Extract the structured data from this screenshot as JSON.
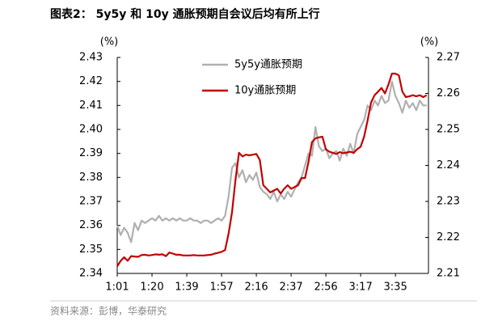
{
  "chart_data": {
    "type": "line",
    "title": "图表2： 5y5y 和 10y 通胀预期自会议后均有所上行",
    "source": "资料来源：彭博，华泰研究",
    "y_unit": "(%)",
    "y2_unit": "(%)",
    "categories": [
      "1:01",
      null,
      null,
      null,
      null,
      null,
      null,
      null,
      null,
      null,
      "1:20",
      null,
      null,
      null,
      null,
      null,
      null,
      null,
      null,
      null,
      "1:39",
      null,
      null,
      null,
      null,
      null,
      null,
      null,
      null,
      null,
      "1:57",
      null,
      null,
      null,
      null,
      null,
      null,
      null,
      null,
      null,
      "2:16",
      null,
      null,
      null,
      null,
      null,
      null,
      null,
      null,
      null,
      "2:37",
      null,
      null,
      null,
      null,
      null,
      null,
      null,
      null,
      null,
      "2:56",
      null,
      null,
      null,
      null,
      null,
      null,
      null,
      null,
      null,
      "3:17",
      null,
      null,
      null,
      null,
      null,
      null,
      null,
      null,
      null,
      "3:35",
      null,
      null,
      null,
      null,
      null,
      null,
      null,
      null,
      null
    ],
    "ylim": [
      2.34,
      2.43
    ],
    "yticks": [
      2.34,
      2.35,
      2.36,
      2.37,
      2.38,
      2.39,
      {
        "value": 2.4,
        "label": "2.40"
      },
      2.41,
      2.42,
      2.43
    ],
    "y2lim": [
      2.21,
      2.27
    ],
    "y2ticks": [
      2.21,
      2.22,
      2.23,
      2.24,
      2.25,
      2.26,
      2.27
    ],
    "series": [
      {
        "name": "5y5y通胀预期",
        "color": "#b0b0b0",
        "axis": "y",
        "values": [
          2.36,
          2.356,
          2.359,
          2.357,
          2.353,
          2.361,
          2.358,
          2.362,
          2.361,
          2.362,
          2.363,
          2.362,
          2.364,
          2.362,
          2.363,
          2.362,
          2.363,
          2.362,
          2.363,
          2.362,
          2.362,
          2.363,
          2.362,
          2.362,
          2.361,
          2.362,
          2.362,
          2.361,
          2.362,
          2.363,
          2.362,
          2.364,
          2.372,
          2.384,
          2.386,
          2.38,
          2.383,
          2.378,
          2.381,
          2.379,
          2.382,
          2.376,
          2.374,
          2.373,
          2.371,
          2.374,
          2.37,
          2.373,
          2.371,
          2.374,
          2.372,
          2.375,
          2.378,
          2.38,
          2.385,
          2.39,
          2.389,
          2.401,
          2.393,
          2.391,
          2.392,
          2.388,
          2.39,
          2.391,
          2.387,
          2.392,
          2.389,
          2.394,
          2.39,
          2.398,
          2.401,
          2.404,
          2.41,
          2.408,
          2.412,
          2.41,
          2.414,
          2.411,
          2.412,
          2.42,
          2.414,
          2.411,
          2.407,
          2.412,
          2.409,
          2.411,
          2.408,
          2.412,
          2.41,
          2.41
        ]
      },
      {
        "name": "10y通胀预期",
        "color": "#c00000",
        "axis": "y2",
        "values": [
          2.212,
          2.2135,
          2.2145,
          2.2135,
          2.2148,
          2.2147,
          2.2146,
          2.2151,
          2.2152,
          2.215,
          2.2151,
          2.2153,
          2.2152,
          2.2153,
          2.2148,
          2.2158,
          2.2155,
          2.2152,
          2.2152,
          2.215,
          2.215,
          2.215,
          2.2151,
          2.215,
          2.215,
          2.215,
          2.2151,
          2.2152,
          2.2155,
          2.2157,
          2.216,
          2.2165,
          2.221,
          2.227,
          2.236,
          2.2435,
          2.2425,
          2.243,
          2.2428,
          2.243,
          2.2432,
          2.2415,
          2.2345,
          2.2335,
          2.2325,
          2.233,
          2.2335,
          2.2322,
          2.2335,
          2.2345,
          2.2335,
          2.234,
          2.2345,
          2.2365,
          2.2365,
          2.241,
          2.2465,
          2.2475,
          2.2478,
          2.248,
          2.2445,
          2.2438,
          2.2435,
          2.2432,
          2.2437,
          2.2434,
          2.2436,
          2.2438,
          2.2435,
          2.2445,
          2.2452,
          2.248,
          2.2525,
          2.2575,
          2.2595,
          2.2605,
          2.2615,
          2.26,
          2.2625,
          2.2655,
          2.2655,
          2.265,
          2.2605,
          2.259,
          2.2592,
          2.2595,
          2.2592,
          2.2595,
          2.259,
          2.2595
        ]
      }
    ]
  }
}
